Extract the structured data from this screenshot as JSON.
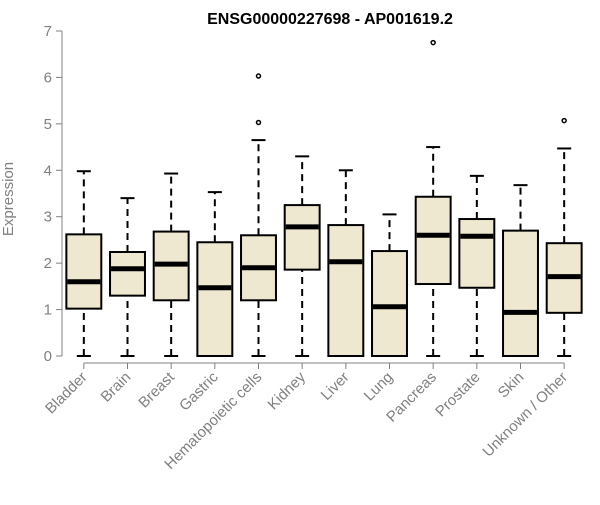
{
  "chart_data": {
    "type": "boxplot",
    "title": "ENSG00000227698 - AP001619.2",
    "ylabel": "Expression",
    "xlabel": "",
    "ylim": [
      0,
      7
    ],
    "yticks": [
      0,
      1,
      2,
      3,
      4,
      5,
      6,
      7
    ],
    "grid": false,
    "colors": {
      "box_fill": "#efe8d0",
      "box_stroke": "#000000",
      "axis_text": "#808080",
      "title": "#000000"
    },
    "categories": [
      "Bladder",
      "Brain",
      "Breast",
      "Gastric",
      "Hematopoietic cells",
      "Kidney",
      "Liver",
      "Lung",
      "Pancreas",
      "Prostate",
      "Skin",
      "Unknown / Other"
    ],
    "boxes": [
      {
        "min": 0,
        "q1": 1.02,
        "median": 1.6,
        "q3": 2.62,
        "max": 3.98,
        "outliers": []
      },
      {
        "min": 0,
        "q1": 1.3,
        "median": 1.88,
        "q3": 2.24,
        "max": 3.4,
        "outliers": []
      },
      {
        "min": 0,
        "q1": 1.2,
        "median": 1.98,
        "q3": 2.68,
        "max": 3.93,
        "outliers": []
      },
      {
        "min": 0,
        "q1": 0,
        "median": 1.47,
        "q3": 2.45,
        "max": 3.53,
        "outliers": []
      },
      {
        "min": 0,
        "q1": 1.2,
        "median": 1.9,
        "q3": 2.6,
        "max": 4.65,
        "outliers": [
          5.03,
          6.03
        ]
      },
      {
        "min": 0,
        "q1": 1.86,
        "median": 2.78,
        "q3": 3.25,
        "max": 4.3,
        "outliers": []
      },
      {
        "min": 0,
        "q1": 0,
        "median": 2.03,
        "q3": 2.82,
        "max": 4.0,
        "outliers": []
      },
      {
        "min": 0,
        "q1": 0,
        "median": 1.06,
        "q3": 2.26,
        "max": 3.05,
        "outliers": []
      },
      {
        "min": 0,
        "q1": 1.55,
        "median": 2.6,
        "q3": 3.43,
        "max": 4.5,
        "outliers": [
          6.75
        ]
      },
      {
        "min": 0,
        "q1": 1.47,
        "median": 2.58,
        "q3": 2.95,
        "max": 3.88,
        "outliers": []
      },
      {
        "min": 0,
        "q1": 0,
        "median": 0.94,
        "q3": 2.7,
        "max": 3.68,
        "outliers": []
      },
      {
        "min": 0,
        "q1": 0.93,
        "median": 1.71,
        "q3": 2.43,
        "max": 4.47,
        "outliers": [
          5.07
        ]
      }
    ]
  }
}
